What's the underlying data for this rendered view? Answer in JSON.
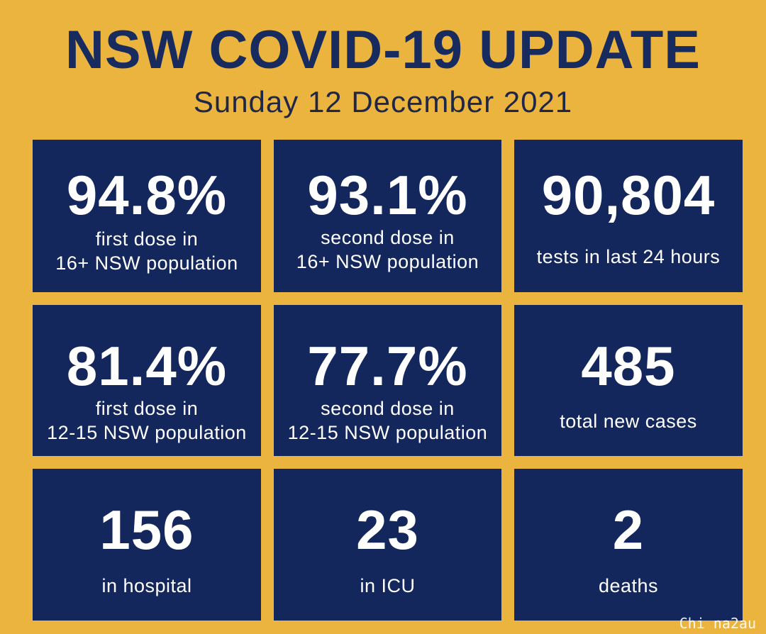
{
  "header": {
    "title": "NSW COVID-19 UPDATE",
    "date": "Sunday 12 December 2021"
  },
  "tiles": [
    {
      "value": "94.8%",
      "label": "first dose in\n16+ NSW population"
    },
    {
      "value": "93.1%",
      "label": "second dose in\n16+ NSW population"
    },
    {
      "value": "90,804",
      "label": "tests in last 24 hours"
    },
    {
      "value": "81.4%",
      "label": "first dose in\n12-15 NSW population"
    },
    {
      "value": "77.7%",
      "label": "second dose in\n12-15 NSW population"
    },
    {
      "value": "485",
      "label": "total new cases"
    },
    {
      "value": "156",
      "label": "in hospital"
    },
    {
      "value": "23",
      "label": "in ICU"
    },
    {
      "value": "2",
      "label": "deaths"
    }
  ],
  "watermark": "Chi na2au",
  "colors": {
    "background": "#ebb43f",
    "tile": "#14275d",
    "title": "#172b5f",
    "text": "#ffffff"
  }
}
